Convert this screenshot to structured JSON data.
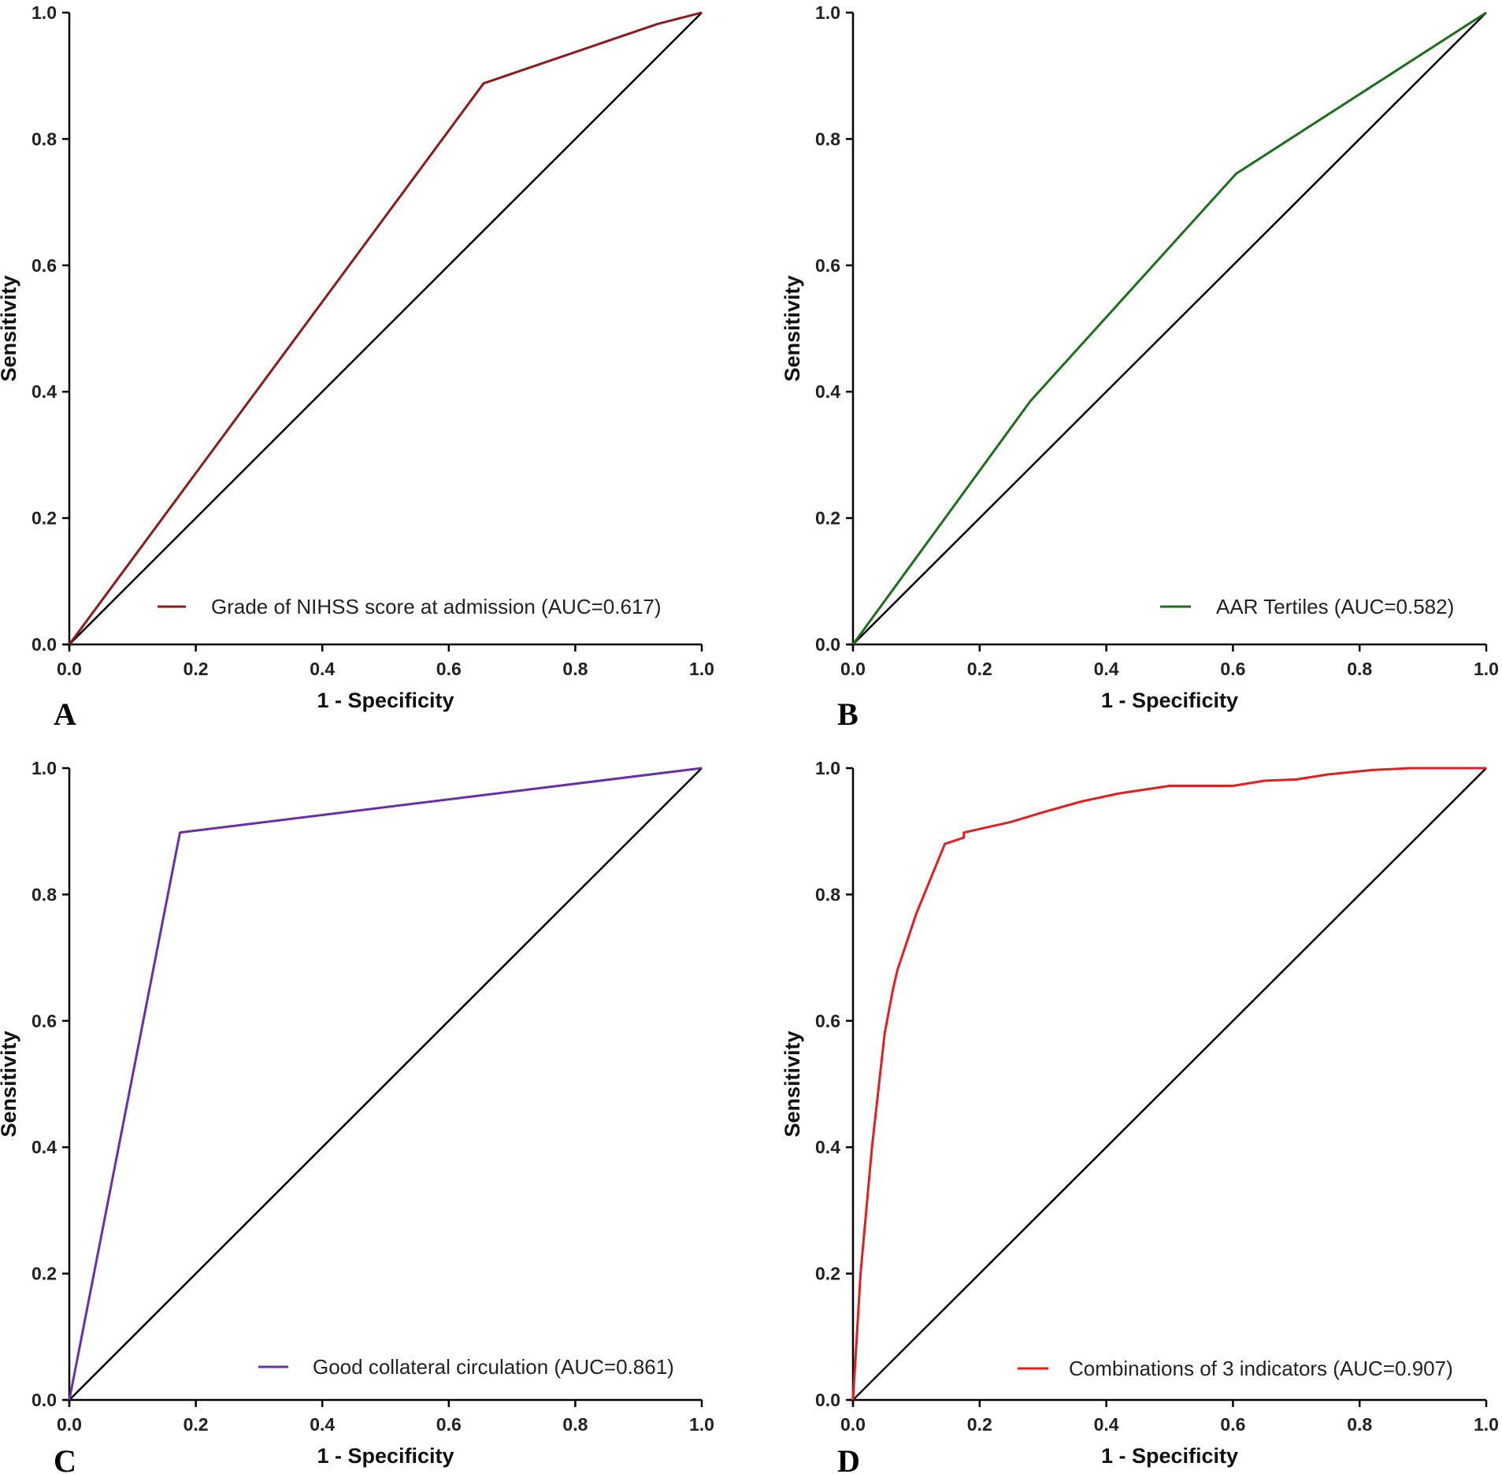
{
  "chart_data": [
    {
      "type": "line",
      "panel": "A",
      "xlabel": "1 - Specificity",
      "ylabel": "Sensitivity",
      "xlim": [
        0,
        1
      ],
      "ylim": [
        0,
        1
      ],
      "ticks": [
        "0.0",
        "0.2",
        "0.4",
        "0.6",
        "0.8",
        "1.0"
      ],
      "reference_line": {
        "x": [
          0,
          1
        ],
        "y": [
          0,
          1
        ],
        "color": "#000000"
      },
      "series": [
        {
          "name": "Grade of NIHSS score at admission (AUC=0.617)",
          "color": "#8b1c1c",
          "x": [
            0,
            0.655,
            0.93,
            1.0
          ],
          "y": [
            0,
            0.888,
            0.982,
            1.0
          ]
        }
      ],
      "legend_position": "bottom-right"
    },
    {
      "type": "line",
      "panel": "B",
      "xlabel": "1 - Specificity",
      "ylabel": "Sensitivity",
      "xlim": [
        0,
        1
      ],
      "ylim": [
        0,
        1
      ],
      "ticks": [
        "0.0",
        "0.2",
        "0.4",
        "0.6",
        "0.8",
        "1.0"
      ],
      "reference_line": {
        "x": [
          0,
          1
        ],
        "y": [
          0,
          1
        ],
        "color": "#000000"
      },
      "series": [
        {
          "name": "AAR Tertiles (AUC=0.582)",
          "color": "#1e6e1e",
          "x": [
            0,
            0.28,
            0.605,
            1.0
          ],
          "y": [
            0,
            0.385,
            0.745,
            1.0
          ]
        }
      ],
      "legend_position": "bottom-right"
    },
    {
      "type": "line",
      "panel": "C",
      "xlabel": "1 - Specificity",
      "ylabel": "Sensitivity",
      "xlim": [
        0,
        1
      ],
      "ylim": [
        0,
        1
      ],
      "ticks": [
        "0.0",
        "0.2",
        "0.4",
        "0.6",
        "0.8",
        "1.0"
      ],
      "reference_line": {
        "x": [
          0,
          1
        ],
        "y": [
          0,
          1
        ],
        "color": "#000000"
      },
      "series": [
        {
          "name": "Good collateral circulation (AUC=0.861)",
          "color": "#6a2fa8",
          "x": [
            0,
            0.175,
            1.0
          ],
          "y": [
            0,
            0.898,
            1.0
          ]
        }
      ],
      "legend_position": "bottom-right"
    },
    {
      "type": "line",
      "panel": "D",
      "xlabel": "1 - Specificity",
      "ylabel": "Sensitivity",
      "xlim": [
        0,
        1
      ],
      "ylim": [
        0,
        1
      ],
      "ticks": [
        "0.0",
        "0.2",
        "0.4",
        "0.6",
        "0.8",
        "1.0"
      ],
      "reference_line": {
        "x": [
          0,
          1
        ],
        "y": [
          0,
          1
        ],
        "color": "#000000"
      },
      "series": [
        {
          "name": "Combinations of 3 indicators (AUC=0.907)",
          "color": "#e02020",
          "x": [
            0,
            0.012,
            0.03,
            0.05,
            0.063,
            0.07,
            0.1,
            0.145,
            0.175,
            0.175,
            0.25,
            0.3,
            0.36,
            0.42,
            0.5,
            0.6,
            0.65,
            0.7,
            0.75,
            0.82,
            0.88,
            1.0
          ],
          "y": [
            0,
            0.2,
            0.4,
            0.58,
            0.65,
            0.68,
            0.77,
            0.88,
            0.89,
            0.898,
            0.915,
            0.93,
            0.947,
            0.96,
            0.972,
            0.972,
            0.98,
            0.982,
            0.99,
            0.997,
            1.0,
            1.0
          ]
        }
      ],
      "legend_position": "bottom-right"
    }
  ]
}
